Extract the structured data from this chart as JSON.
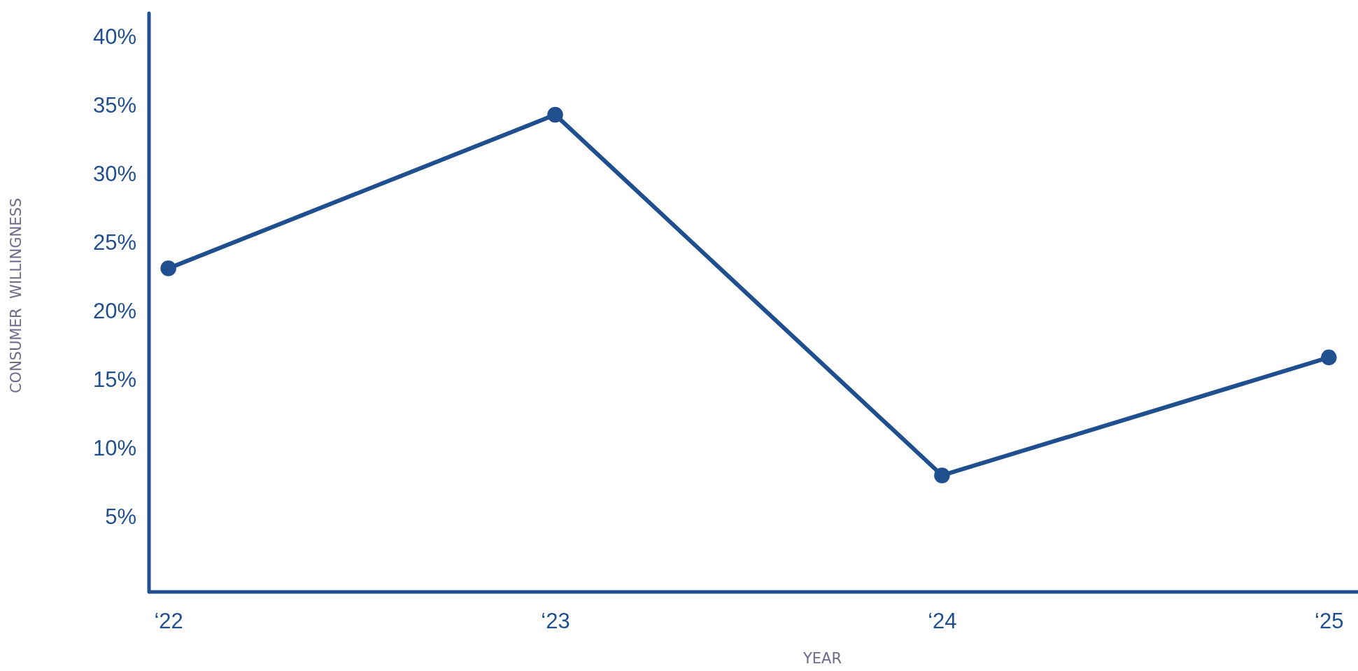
{
  "chart_data": {
    "type": "line",
    "xlabel": "YEAR",
    "ylabel": "CONSUMER  WILLINGNESS",
    "categories": [
      "‘22",
      "‘23",
      "‘24",
      "‘25"
    ],
    "series": [
      {
        "color": "#1f4f8f",
        "values": [
          23.1,
          34.3,
          8.0,
          16.6
        ]
      }
    ],
    "ylim": [
      -0.5,
      41.7
    ],
    "yticks": [
      {
        "value": 5,
        "label": "5%"
      },
      {
        "value": 10,
        "label": "10%"
      },
      {
        "value": 15,
        "label": "15%"
      },
      {
        "value": 20,
        "label": "20%"
      },
      {
        "value": 25,
        "label": "25%"
      },
      {
        "value": 30,
        "label": "30%"
      },
      {
        "value": 35,
        "label": "35%"
      },
      {
        "value": 40,
        "label": "40%"
      }
    ],
    "marker": "circle",
    "line_style": "solid",
    "grid": false
  }
}
